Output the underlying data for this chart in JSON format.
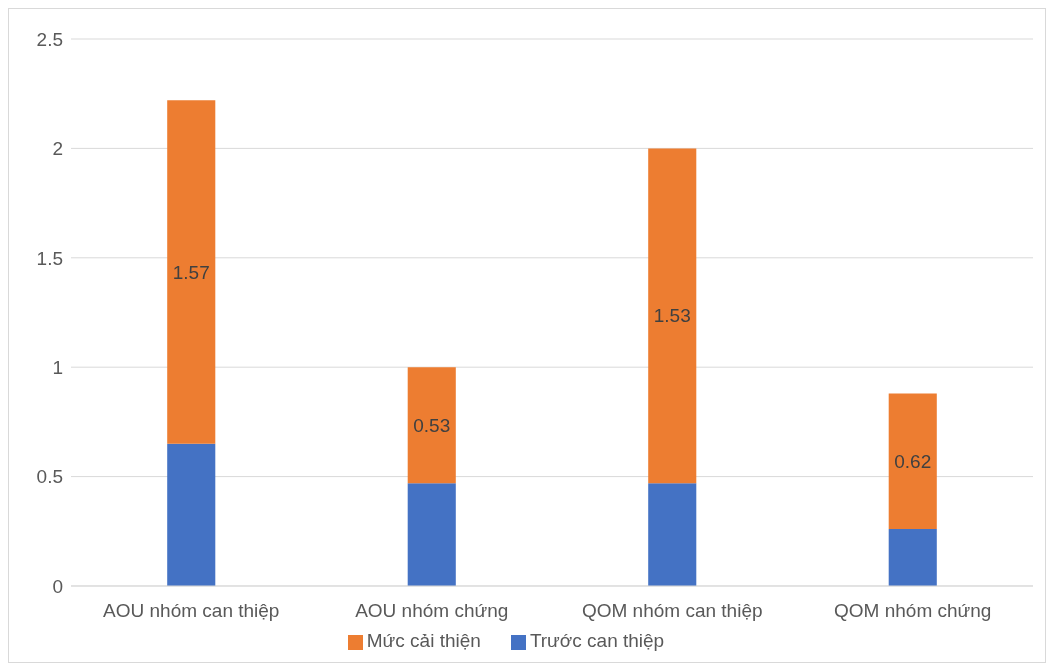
{
  "chart_data": {
    "type": "bar",
    "stacked": true,
    "categories": [
      "AOU nhóm can thiệp",
      "AOU nhóm chứng",
      "QOM nhóm can thiệp",
      "QOM nhóm chứng"
    ],
    "series": [
      {
        "name": "Trước can thiệp",
        "color": "#4472c4",
        "values": [
          0.65,
          0.47,
          0.47,
          0.26
        ]
      },
      {
        "name": "Mức cải thiện",
        "color": "#ed7d31",
        "values": [
          1.57,
          0.53,
          1.53,
          0.62
        ],
        "value_labels": [
          "1.57",
          "0.53",
          "1.53",
          "0.62"
        ]
      }
    ],
    "ylim": [
      0,
      2.5
    ],
    "yticks": [
      0,
      0.5,
      1,
      1.5,
      2,
      2.5
    ],
    "grid": "y",
    "legend": "bottom"
  }
}
